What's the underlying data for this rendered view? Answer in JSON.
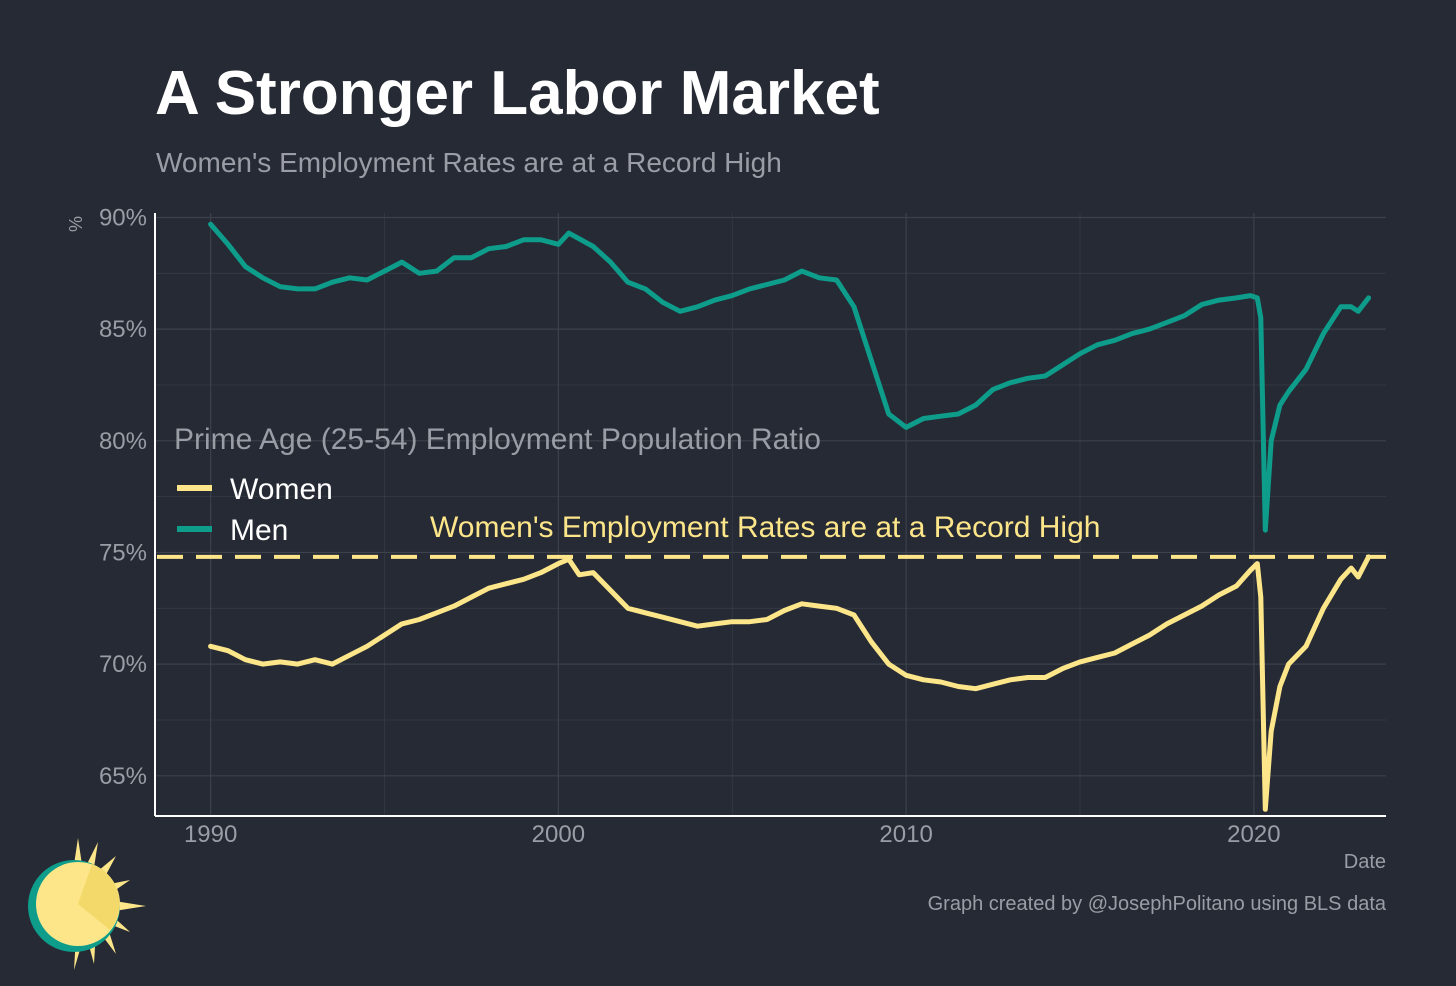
{
  "header": {
    "title": "A Stronger Labor Market",
    "subtitle": "Women's Employment Rates are at a Record High"
  },
  "footer": {
    "caption": "Graph created by @JosephPolitano using BLS data"
  },
  "colors": {
    "background": "#252a34",
    "women": "#fde68a",
    "men": "#0e9c8b",
    "grid": "#3c414b",
    "text_muted": "#9a9da5"
  },
  "logo": {
    "icon": "sun-icon"
  },
  "chart_data": {
    "type": "line",
    "xlabel": "Date",
    "ylabel": "%",
    "xlim": [
      1988.4,
      2023.8
    ],
    "ylim": [
      63.2,
      90.2
    ],
    "x_ticks": [
      1990,
      2000,
      2010,
      2020
    ],
    "x_tick_labels": [
      "1990",
      "2000",
      "2010",
      "2020"
    ],
    "y_ticks": [
      65,
      70,
      75,
      80,
      85,
      90
    ],
    "y_tick_labels": [
      "65%",
      "70%",
      "75%",
      "80%",
      "85%",
      "90%"
    ],
    "grid": true,
    "legend": {
      "title": "Prime Age (25-54) Employment Population Ratio",
      "placement": "left-middle"
    },
    "reference_line": {
      "y": 74.8,
      "style": "dashed",
      "label": "Women's Employment Rates are at a Record High"
    },
    "series": [
      {
        "name": "Women",
        "color": "#fde68a",
        "points": [
          [
            1990.0,
            70.8
          ],
          [
            1990.5,
            70.6
          ],
          [
            1991.0,
            70.2
          ],
          [
            1991.5,
            70.0
          ],
          [
            1992.0,
            70.1
          ],
          [
            1992.5,
            70.0
          ],
          [
            1993.0,
            70.2
          ],
          [
            1993.5,
            70.0
          ],
          [
            1994.0,
            70.4
          ],
          [
            1994.5,
            70.8
          ],
          [
            1995.0,
            71.3
          ],
          [
            1995.5,
            71.8
          ],
          [
            1996.0,
            72.0
          ],
          [
            1996.5,
            72.3
          ],
          [
            1997.0,
            72.6
          ],
          [
            1997.5,
            73.0
          ],
          [
            1998.0,
            73.4
          ],
          [
            1998.5,
            73.6
          ],
          [
            1999.0,
            73.8
          ],
          [
            1999.5,
            74.1
          ],
          [
            2000.0,
            74.5
          ],
          [
            2000.3,
            74.7
          ],
          [
            2000.6,
            74.0
          ],
          [
            2001.0,
            74.1
          ],
          [
            2001.5,
            73.3
          ],
          [
            2002.0,
            72.5
          ],
          [
            2002.5,
            72.3
          ],
          [
            2003.0,
            72.1
          ],
          [
            2003.5,
            71.9
          ],
          [
            2004.0,
            71.7
          ],
          [
            2004.5,
            71.8
          ],
          [
            2005.0,
            71.9
          ],
          [
            2005.5,
            71.9
          ],
          [
            2006.0,
            72.0
          ],
          [
            2006.5,
            72.4
          ],
          [
            2007.0,
            72.7
          ],
          [
            2007.5,
            72.6
          ],
          [
            2008.0,
            72.5
          ],
          [
            2008.5,
            72.2
          ],
          [
            2009.0,
            71.0
          ],
          [
            2009.5,
            70.0
          ],
          [
            2010.0,
            69.5
          ],
          [
            2010.5,
            69.3
          ],
          [
            2011.0,
            69.2
          ],
          [
            2011.5,
            69.0
          ],
          [
            2012.0,
            68.9
          ],
          [
            2012.5,
            69.1
          ],
          [
            2013.0,
            69.3
          ],
          [
            2013.5,
            69.4
          ],
          [
            2014.0,
            69.4
          ],
          [
            2014.5,
            69.8
          ],
          [
            2015.0,
            70.1
          ],
          [
            2015.5,
            70.3
          ],
          [
            2016.0,
            70.5
          ],
          [
            2016.5,
            70.9
          ],
          [
            2017.0,
            71.3
          ],
          [
            2017.5,
            71.8
          ],
          [
            2018.0,
            72.2
          ],
          [
            2018.5,
            72.6
          ],
          [
            2019.0,
            73.1
          ],
          [
            2019.5,
            73.5
          ],
          [
            2019.9,
            74.2
          ],
          [
            2020.1,
            74.5
          ],
          [
            2020.2,
            73.0
          ],
          [
            2020.33,
            63.5
          ],
          [
            2020.5,
            67.0
          ],
          [
            2020.75,
            69.0
          ],
          [
            2021.0,
            70.0
          ],
          [
            2021.5,
            70.8
          ],
          [
            2022.0,
            72.5
          ],
          [
            2022.5,
            73.8
          ],
          [
            2022.8,
            74.3
          ],
          [
            2023.0,
            73.9
          ],
          [
            2023.3,
            74.8
          ]
        ]
      },
      {
        "name": "Men",
        "color": "#0e9c8b",
        "points": [
          [
            1990.0,
            89.7
          ],
          [
            1990.5,
            88.8
          ],
          [
            1991.0,
            87.8
          ],
          [
            1991.5,
            87.3
          ],
          [
            1992.0,
            86.9
          ],
          [
            1992.5,
            86.8
          ],
          [
            1993.0,
            86.8
          ],
          [
            1993.5,
            87.1
          ],
          [
            1994.0,
            87.3
          ],
          [
            1994.5,
            87.2
          ],
          [
            1995.0,
            87.6
          ],
          [
            1995.5,
            88.0
          ],
          [
            1996.0,
            87.5
          ],
          [
            1996.5,
            87.6
          ],
          [
            1997.0,
            88.2
          ],
          [
            1997.5,
            88.2
          ],
          [
            1998.0,
            88.6
          ],
          [
            1998.5,
            88.7
          ],
          [
            1999.0,
            89.0
          ],
          [
            1999.5,
            89.0
          ],
          [
            2000.0,
            88.8
          ],
          [
            2000.3,
            89.3
          ],
          [
            2001.0,
            88.7
          ],
          [
            2001.5,
            88.0
          ],
          [
            2002.0,
            87.1
          ],
          [
            2002.5,
            86.8
          ],
          [
            2003.0,
            86.2
          ],
          [
            2003.5,
            85.8
          ],
          [
            2004.0,
            86.0
          ],
          [
            2004.5,
            86.3
          ],
          [
            2005.0,
            86.5
          ],
          [
            2005.5,
            86.8
          ],
          [
            2006.0,
            87.0
          ],
          [
            2006.5,
            87.2
          ],
          [
            2007.0,
            87.6
          ],
          [
            2007.5,
            87.3
          ],
          [
            2008.0,
            87.2
          ],
          [
            2008.5,
            86.0
          ],
          [
            2009.0,
            83.6
          ],
          [
            2009.5,
            81.2
          ],
          [
            2010.0,
            80.6
          ],
          [
            2010.5,
            81.0
          ],
          [
            2011.0,
            81.1
          ],
          [
            2011.5,
            81.2
          ],
          [
            2012.0,
            81.6
          ],
          [
            2012.5,
            82.3
          ],
          [
            2013.0,
            82.6
          ],
          [
            2013.5,
            82.8
          ],
          [
            2014.0,
            82.9
          ],
          [
            2014.5,
            83.4
          ],
          [
            2015.0,
            83.9
          ],
          [
            2015.5,
            84.3
          ],
          [
            2016.0,
            84.5
          ],
          [
            2016.5,
            84.8
          ],
          [
            2017.0,
            85.0
          ],
          [
            2017.5,
            85.3
          ],
          [
            2018.0,
            85.6
          ],
          [
            2018.5,
            86.1
          ],
          [
            2019.0,
            86.3
          ],
          [
            2019.5,
            86.4
          ],
          [
            2019.9,
            86.5
          ],
          [
            2020.1,
            86.4
          ],
          [
            2020.2,
            85.5
          ],
          [
            2020.33,
            76.0
          ],
          [
            2020.5,
            80.0
          ],
          [
            2020.75,
            81.6
          ],
          [
            2021.0,
            82.2
          ],
          [
            2021.5,
            83.2
          ],
          [
            2022.0,
            84.8
          ],
          [
            2022.5,
            86.0
          ],
          [
            2022.8,
            86.0
          ],
          [
            2023.0,
            85.8
          ],
          [
            2023.3,
            86.4
          ]
        ]
      }
    ]
  }
}
